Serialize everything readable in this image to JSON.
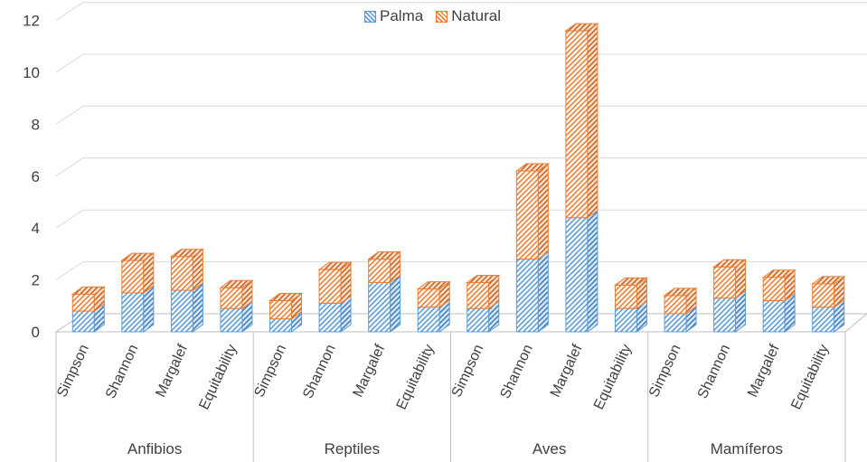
{
  "chart_data": {
    "type": "bar",
    "stacked": true,
    "three_d": true,
    "groups": [
      {
        "name": "Anfibios",
        "metrics": [
          "Simpson",
          "Shannon",
          "Margalef",
          "Equitability"
        ]
      },
      {
        "name": "Reptiles",
        "metrics": [
          "Simpson",
          "Shannon",
          "Margalef",
          "Equitability"
        ]
      },
      {
        "name": "Aves",
        "metrics": [
          "Simpson",
          "Shannon",
          "Margalef",
          "Equitability"
        ]
      },
      {
        "name": "Mamíferos",
        "metrics": [
          "Simpson",
          "Shannon",
          "Margalef",
          "Equitability"
        ]
      }
    ],
    "series": [
      {
        "name": "Palma",
        "color": "#5b9bd5",
        "values": [
          0.8,
          1.5,
          1.6,
          0.9,
          0.5,
          1.1,
          1.9,
          0.95,
          0.9,
          2.8,
          4.4,
          0.9,
          0.7,
          1.3,
          1.2,
          0.95
        ]
      },
      {
        "name": "Natural",
        "color": "#ed7d31",
        "values": [
          0.65,
          1.25,
          1.3,
          0.8,
          0.7,
          1.3,
          0.9,
          0.7,
          1.0,
          3.4,
          7.2,
          0.9,
          0.7,
          1.2,
          0.9,
          0.9
        ]
      }
    ],
    "y_ticks": [
      "0",
      "2",
      "4",
      "6",
      "8",
      "10",
      "12"
    ],
    "ylim": [
      0,
      12
    ],
    "grid": true,
    "legend": "top-center"
  }
}
